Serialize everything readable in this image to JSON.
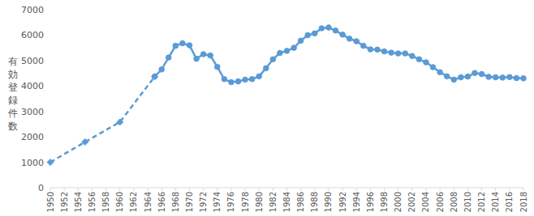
{
  "chart_data": {
    "type": "line",
    "y_label": "有効登録件数",
    "x": [
      1950,
      1955,
      1960,
      1965,
      1966,
      1967,
      1968,
      1969,
      1970,
      1971,
      1972,
      1973,
      1974,
      1975,
      1976,
      1977,
      1978,
      1979,
      1980,
      1981,
      1982,
      1983,
      1984,
      1985,
      1986,
      1987,
      1988,
      1989,
      1990,
      1991,
      1992,
      1993,
      1994,
      1995,
      1996,
      1997,
      1998,
      1999,
      2000,
      2001,
      2002,
      2003,
      2004,
      2005,
      2006,
      2007,
      2008,
      2009,
      2010,
      2011,
      2012,
      2013,
      2014,
      2015,
      2016,
      2017,
      2018
    ],
    "series": [
      {
        "color": "#5b9bd5",
        "line_style": "dashed",
        "marker": "diamond",
        "values": [
          1000,
          1800,
          2580,
          4370,
          null,
          null,
          null,
          null,
          null,
          null,
          null,
          null,
          null,
          null,
          null,
          null,
          null,
          null,
          null,
          null,
          null,
          null,
          null,
          null,
          null,
          null,
          null,
          null,
          null,
          null,
          null,
          null,
          null,
          null,
          null,
          null,
          null,
          null,
          null,
          null,
          null,
          null,
          null,
          null,
          null,
          null,
          null,
          null,
          null,
          null,
          null,
          null,
          null,
          null,
          null,
          null,
          null
        ]
      },
      {
        "color": "#5b9bd5",
        "line_style": "solid",
        "marker": "circle",
        "values": [
          null,
          null,
          null,
          4370,
          4650,
          5120,
          5580,
          5680,
          5600,
          5070,
          5250,
          5200,
          4750,
          4270,
          4150,
          4180,
          4250,
          4270,
          4380,
          4700,
          5050,
          5300,
          5380,
          5500,
          5780,
          6000,
          6070,
          6270,
          6300,
          6180,
          6020,
          5860,
          5760,
          5580,
          5440,
          5430,
          5360,
          5310,
          5280,
          5280,
          5180,
          5050,
          4930,
          4740,
          4540,
          4380,
          4250,
          4340,
          4370,
          4510,
          4470,
          4360,
          4340,
          4330,
          4350,
          4310,
          4300
        ]
      }
    ],
    "xlim": [
      1950,
      2018
    ],
    "xticks": [
      1950,
      1952,
      1954,
      1956,
      1958,
      1960,
      1962,
      1964,
      1966,
      1968,
      1970,
      1972,
      1974,
      1976,
      1978,
      1980,
      1982,
      1984,
      1986,
      1988,
      1990,
      1992,
      1994,
      1996,
      1998,
      2000,
      2002,
      2004,
      2006,
      2008,
      2010,
      2012,
      2014,
      2016,
      2018
    ],
    "ylim": [
      0,
      7000
    ],
    "yticks": [
      0,
      1000,
      2000,
      3000,
      4000,
      5000,
      6000,
      7000
    ],
    "grid": false
  }
}
